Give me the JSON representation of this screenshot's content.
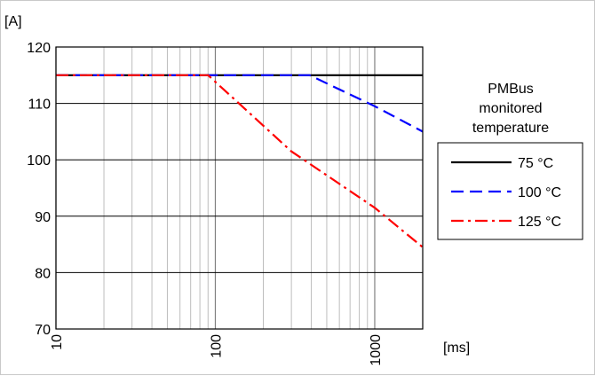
{
  "chart_data": {
    "type": "line",
    "title": "",
    "ylabel": "[A]",
    "xlabel": "[ms]",
    "x_scale": "log",
    "xlim": [
      10,
      2000
    ],
    "ylim": [
      70,
      120
    ],
    "x_ticks": [
      10,
      100,
      1000
    ],
    "x_tick_labels": [
      "10",
      "100",
      "1000"
    ],
    "y_ticks": [
      70,
      80,
      90,
      100,
      110,
      120
    ],
    "y_tick_labels": [
      "70",
      "80",
      "90",
      "100",
      "110",
      "120"
    ],
    "grid": true,
    "legend_title": "PMBus monitored temperature",
    "legend_title_lines": [
      "PMBus",
      "monitored",
      "temperature"
    ],
    "legend_position": "right",
    "series": [
      {
        "name": "75 °C",
        "color": "#000000",
        "dash": "solid",
        "points": [
          [
            10,
            115
          ],
          [
            2000,
            115
          ]
        ]
      },
      {
        "name": "100 °C",
        "color": "#0000ff",
        "dash": "dash",
        "points": [
          [
            10,
            115
          ],
          [
            390,
            115
          ],
          [
            1000,
            109.5
          ],
          [
            2000,
            105
          ]
        ]
      },
      {
        "name": "125 °C",
        "color": "#ff0000",
        "dash": "dashdot",
        "points": [
          [
            10,
            115
          ],
          [
            90,
            115
          ],
          [
            300,
            101.5
          ],
          [
            1000,
            91.5
          ],
          [
            2000,
            84.5
          ]
        ]
      }
    ]
  }
}
